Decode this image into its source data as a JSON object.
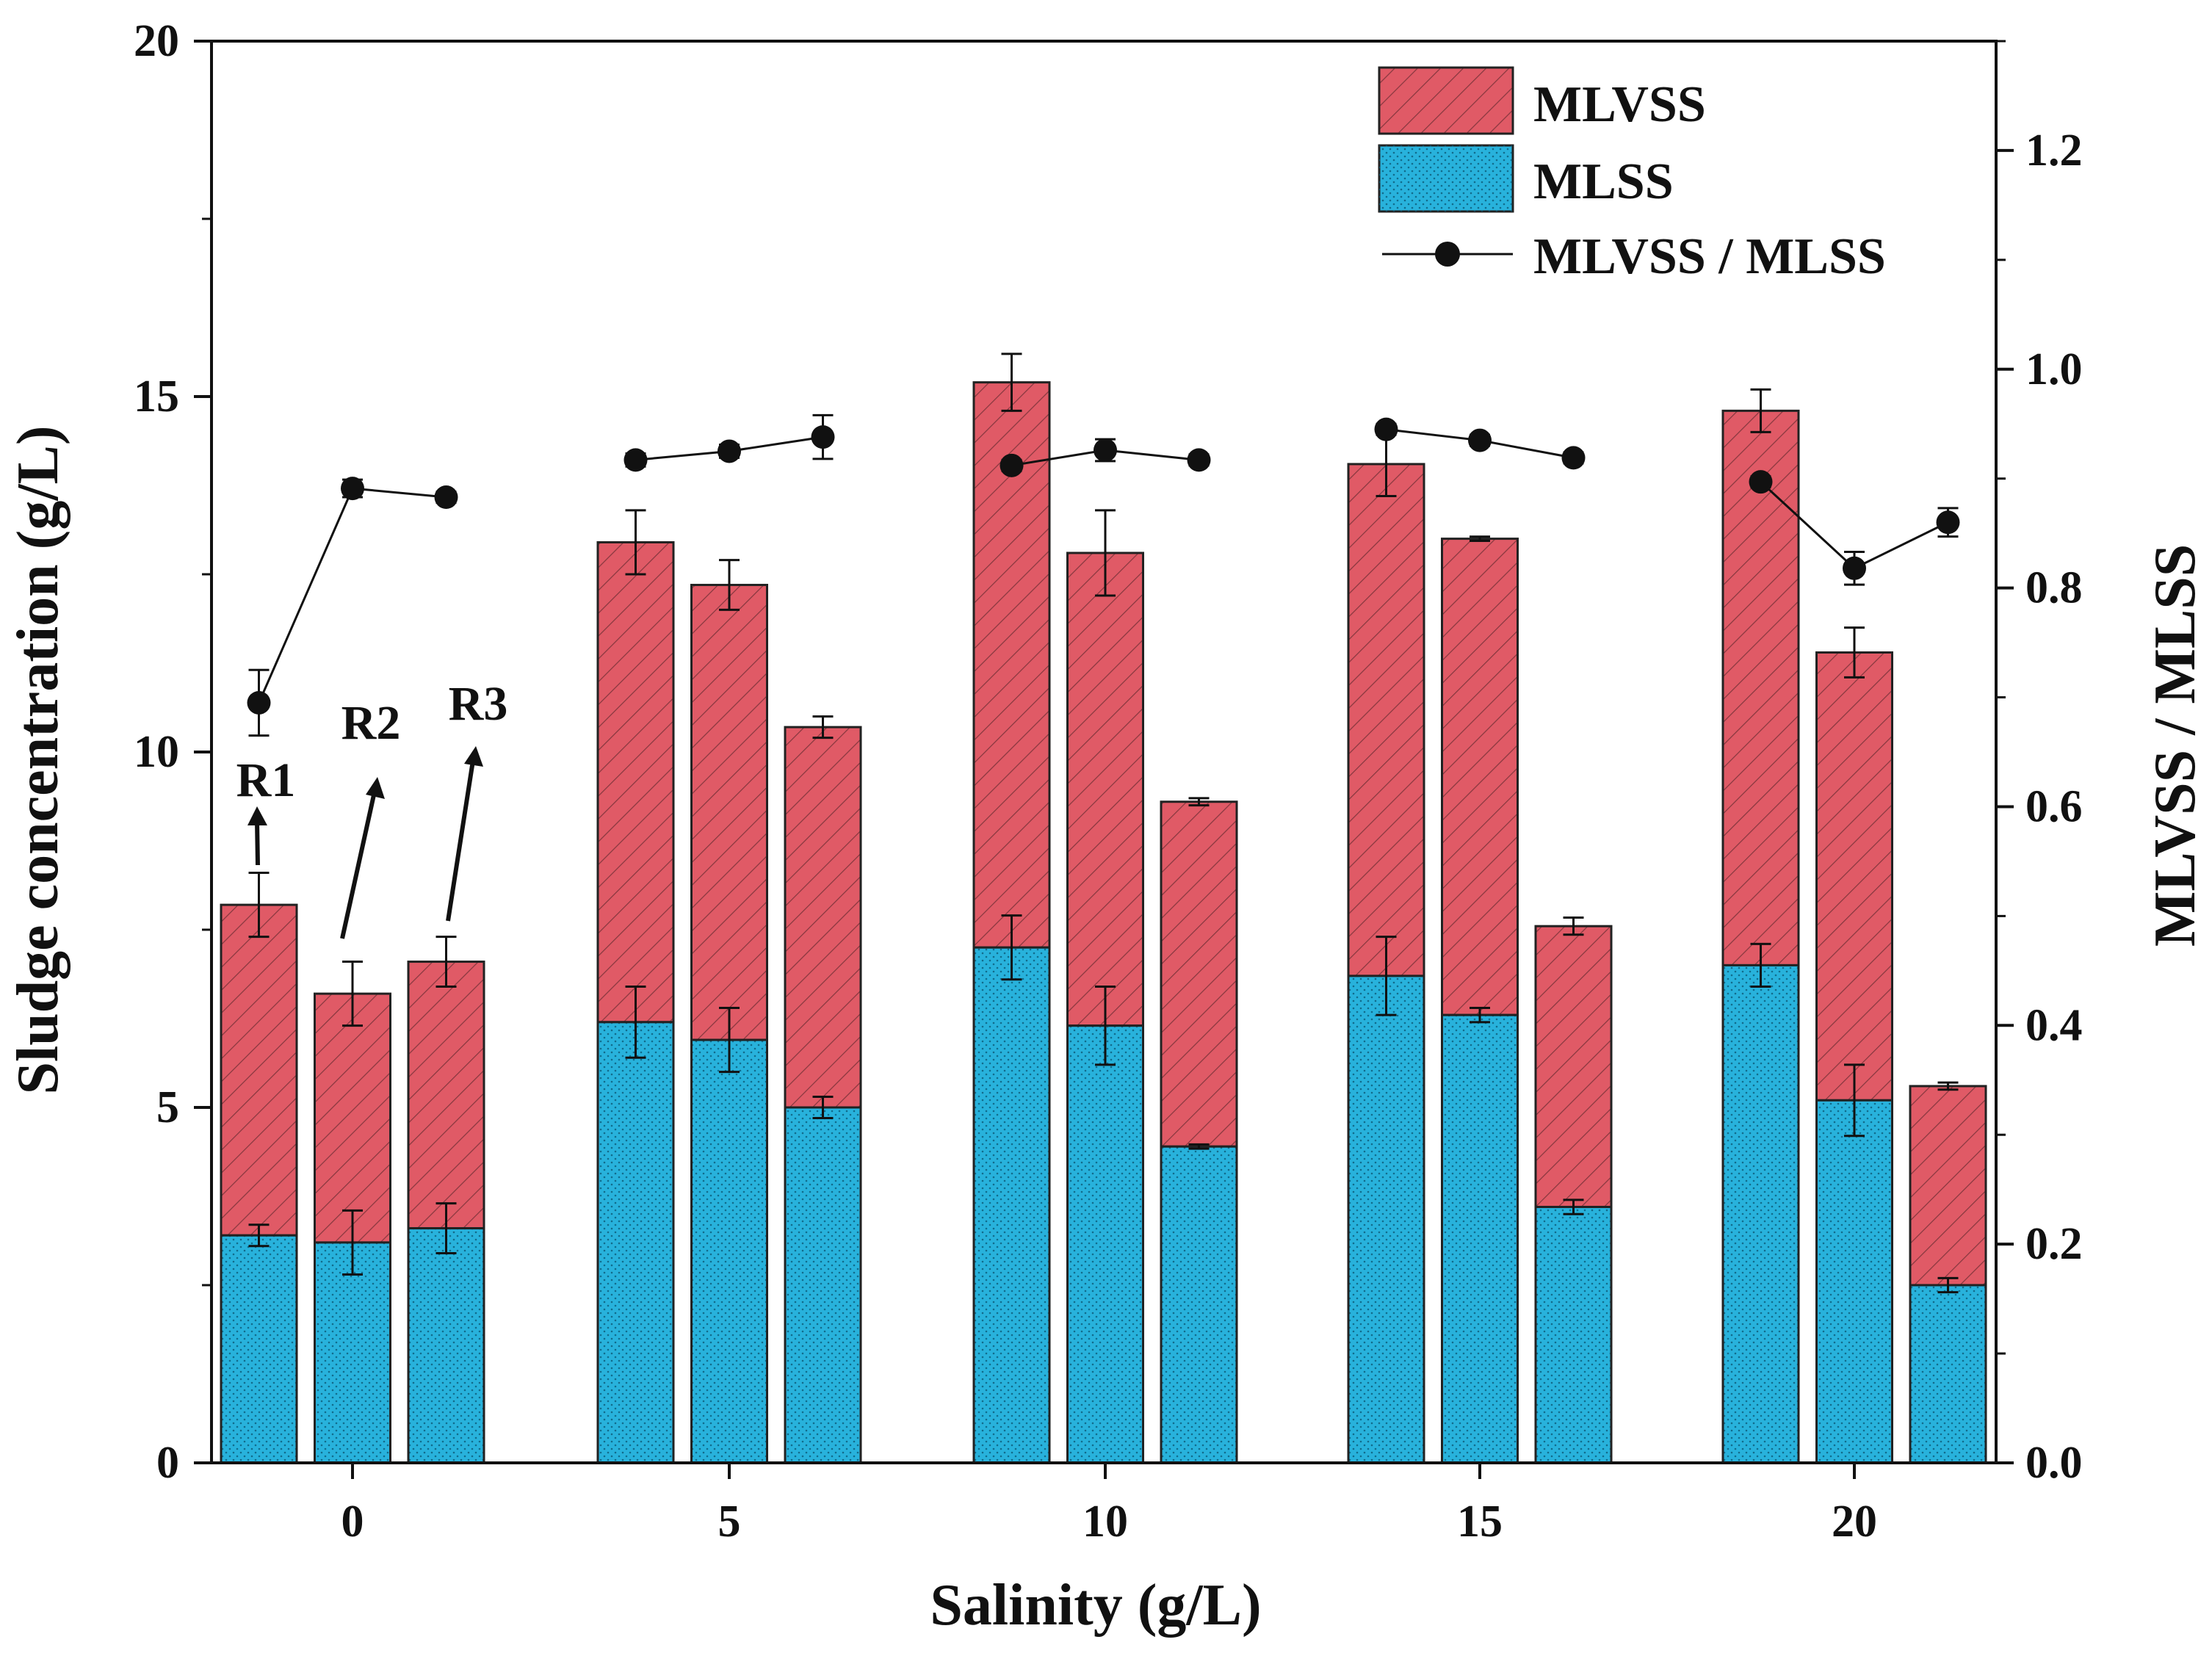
{
  "colors": {
    "mlvss": "#e05a66",
    "mlss": "#28b2dc",
    "line": "#111111",
    "axis": "#111111",
    "background": "#ffffff"
  },
  "chart_data": {
    "type": "bar",
    "subtype": "stacked-bar-with-line-secondary-axis",
    "xlabel": "Salinity (g/L)",
    "ylabel": "Sludge concentration (g/L)",
    "y2label": "MLVSS / MLSS",
    "ylim": [
      0,
      20
    ],
    "y2lim": [
      0,
      1.3
    ],
    "yticks": [
      0,
      5,
      10,
      15,
      20
    ],
    "y2ticks": [
      0.0,
      0.2,
      0.4,
      0.6,
      0.8,
      1.0,
      1.2
    ],
    "y2tick_labels": [
      "0.0",
      "0.2",
      "0.4",
      "0.6",
      "0.8",
      "1.0",
      "1.2"
    ],
    "categories": [
      "0",
      "5",
      "10",
      "15",
      "20"
    ],
    "reactors": [
      "R1",
      "R2",
      "R3"
    ],
    "legend": {
      "position": "top-right",
      "entries": [
        "MLVSS",
        "MLSS",
        "MLVSS / MLSS"
      ]
    },
    "annotations": [
      "R1",
      "R2",
      "R3"
    ],
    "series": [
      {
        "name": "MLSS",
        "axis": "left",
        "values": [
          [
            3.2,
            3.1,
            3.3
          ],
          [
            6.2,
            5.95,
            5.0
          ],
          [
            7.25,
            6.15,
            4.45
          ],
          [
            6.85,
            6.3,
            3.6
          ],
          [
            7.0,
            5.1,
            2.5
          ]
        ],
        "errors": [
          [
            0.15,
            0.45,
            0.35
          ],
          [
            0.5,
            0.45,
            0.15
          ],
          [
            0.45,
            0.55,
            0.03
          ],
          [
            0.55,
            0.1,
            0.1
          ],
          [
            0.3,
            0.5,
            0.1
          ]
        ]
      },
      {
        "name": "MLVSS",
        "axis": "left",
        "values": [
          [
            7.85,
            6.6,
            7.05
          ],
          [
            12.95,
            12.35,
            10.35
          ],
          [
            15.2,
            12.8,
            9.3
          ],
          [
            14.05,
            13.0,
            7.55
          ],
          [
            14.8,
            11.4,
            5.3
          ]
        ],
        "errors": [
          [
            0.45,
            0.45,
            0.35
          ],
          [
            0.45,
            0.35,
            0.15
          ],
          [
            0.4,
            0.6,
            0.05
          ],
          [
            0.45,
            0.03,
            0.12
          ],
          [
            0.3,
            0.35,
            0.05
          ]
        ]
      },
      {
        "name": "MLVSS / MLSS",
        "axis": "right",
        "values": [
          [
            0.695,
            0.891,
            0.883
          ],
          [
            0.917,
            0.925,
            0.938
          ],
          [
            0.912,
            0.926,
            0.917
          ],
          [
            0.945,
            0.935,
            0.919
          ],
          [
            0.897,
            0.818,
            0.86
          ]
        ],
        "errors": [
          [
            0.03,
            0.008,
            0.005
          ],
          [
            0.006,
            0.006,
            0.02
          ],
          [
            0.005,
            0.01,
            0.005
          ],
          [
            0.005,
            0.005,
            0.005
          ],
          [
            0.005,
            0.015,
            0.013
          ]
        ]
      }
    ]
  }
}
